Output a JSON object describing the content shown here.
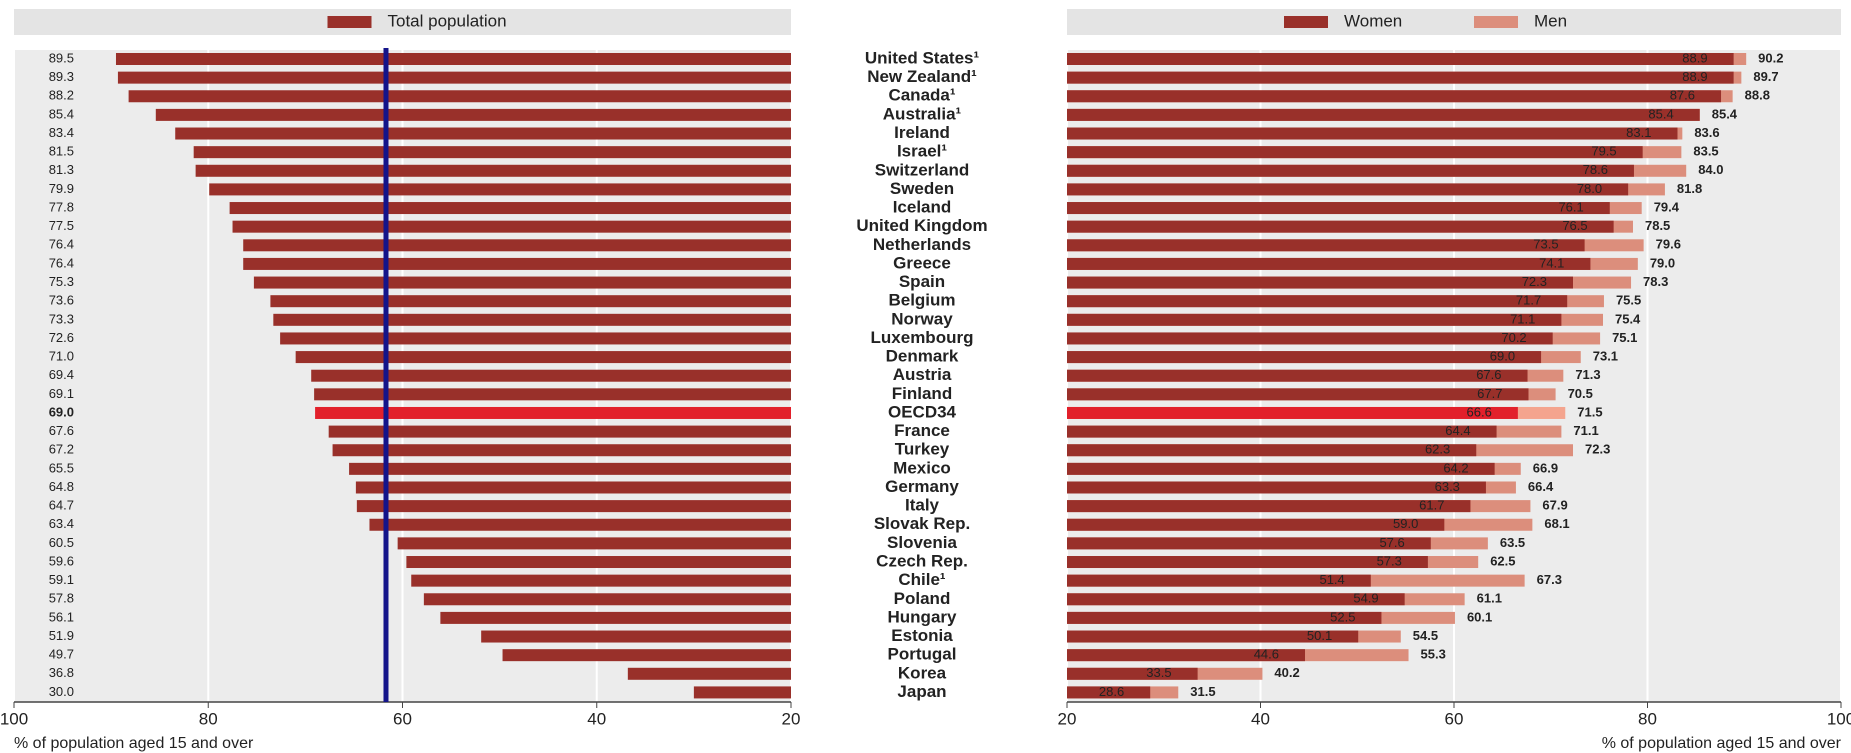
{
  "chart_data": [
    {
      "type": "bar",
      "orientation": "horizontal",
      "legend": "top",
      "grid": true,
      "xlabel": "% of population aged 15 and over",
      "xlim": [
        100,
        20
      ],
      "xticks": [
        100,
        80,
        60,
        40,
        20
      ],
      "highlight_index": 19,
      "reference_line": {
        "value": 61.7,
        "color": "#14148a"
      },
      "categories": [
        "United States¹",
        "New Zealand¹",
        "Canada¹",
        "Australia¹",
        "Ireland",
        "Israel¹",
        "Switzerland",
        "Sweden",
        "Iceland",
        "United Kingdom",
        "Netherlands",
        "Greece",
        "Spain",
        "Belgium",
        "Norway",
        "Luxembourg",
        "Denmark",
        "Austria",
        "Finland",
        "OECD34",
        "France",
        "Turkey",
        "Mexico",
        "Germany",
        "Italy",
        "Slovak Rep.",
        "Slovenia",
        "Czech Rep.",
        "Chile¹",
        "Poland",
        "Hungary",
        "Estonia",
        "Portugal",
        "Korea",
        "Japan"
      ],
      "series": [
        {
          "name": "Total population",
          "color": "#99302a",
          "highlight_color": "#e2202b",
          "values": [
            89.5,
            89.3,
            88.2,
            85.4,
            83.4,
            81.5,
            81.3,
            79.9,
            77.8,
            77.5,
            76.4,
            76.4,
            75.3,
            73.6,
            73.3,
            72.6,
            71.0,
            69.4,
            69.1,
            69.0,
            67.6,
            67.2,
            65.5,
            64.8,
            64.7,
            63.4,
            60.5,
            59.6,
            59.1,
            57.8,
            56.1,
            51.9,
            49.7,
            36.8,
            30.0
          ],
          "value_labels": [
            "89.5",
            "89.3",
            "88.2",
            "85.4",
            "83.4",
            "81.5",
            "81.3",
            "79.9",
            "77.8",
            "77.5",
            "76.4",
            "76.4",
            "75.3",
            "73.6",
            "73.3",
            "72.6",
            "71.0",
            "69.4",
            "69.1",
            "69.0",
            "67.6",
            "67.2",
            "65.5",
            "64.8",
            "64.7",
            "63.4",
            "60.5",
            "59.6",
            "59.1",
            "57.8",
            "56.1",
            "51.9",
            "49.7",
            "36.8",
            "30.0"
          ]
        }
      ]
    },
    {
      "type": "bar",
      "orientation": "horizontal",
      "legend": "top",
      "grid": true,
      "xlabel": "% of population aged 15 and over",
      "xlim": [
        20,
        100
      ],
      "xticks": [
        20,
        40,
        60,
        80,
        100
      ],
      "highlight_index": 19,
      "series": [
        {
          "name": "Women",
          "color": "#99302a",
          "highlight_color": "#e2202b",
          "values": [
            88.9,
            88.9,
            87.6,
            85.4,
            83.1,
            79.5,
            78.6,
            78.0,
            76.1,
            76.5,
            73.5,
            74.1,
            72.3,
            71.7,
            71.1,
            70.2,
            69.0,
            67.6,
            67.7,
            66.6,
            64.4,
            62.3,
            64.2,
            63.3,
            61.7,
            59.0,
            57.6,
            57.3,
            51.4,
            54.9,
            52.5,
            50.1,
            44.6,
            33.5,
            28.6
          ],
          "value_labels": [
            "88.9",
            "88.9",
            "87.6",
            "85.4",
            "83.1",
            "79.5",
            "78.6",
            "78.0",
            "76.1",
            "76.5",
            "73.5",
            "74.1",
            "72.3",
            "71.7",
            "71.1",
            "70.2",
            "69.0",
            "67.6",
            "67.7",
            "66.6",
            "64.4",
            "62.3",
            "64.2",
            "63.3",
            "61.7",
            "59.0",
            "57.6",
            "57.3",
            "51.4",
            "54.9",
            "52.5",
            "50.1",
            "44.6",
            "33.5",
            "28.6"
          ]
        },
        {
          "name": "Men",
          "color": "#dc8e7c",
          "highlight_color": "#f4a48e",
          "values": [
            90.2,
            89.7,
            88.8,
            85.4,
            83.6,
            83.5,
            84.0,
            81.8,
            79.4,
            78.5,
            79.6,
            79.0,
            78.3,
            75.5,
            75.4,
            75.1,
            73.1,
            71.3,
            70.5,
            71.5,
            71.1,
            72.3,
            66.9,
            66.4,
            67.9,
            68.1,
            63.5,
            62.5,
            67.3,
            61.1,
            60.1,
            54.5,
            55.3,
            40.2,
            31.5
          ],
          "value_labels": [
            "90.2",
            "89.7",
            "88.8",
            "85.4",
            "83.6",
            "83.5",
            "84.0",
            "81.8",
            "79.4",
            "78.5",
            "79.6",
            "79.0",
            "78.3",
            "75.5",
            "75.4",
            "75.1",
            "73.1",
            "71.3",
            "70.5",
            "71.5",
            "71.1",
            "72.3",
            "66.9",
            "66.4",
            "67.9",
            "68.1",
            "63.5",
            "62.5",
            "67.3",
            "61.1",
            "60.1",
            "54.5",
            "55.3",
            "40.2",
            "31.5"
          ]
        }
      ]
    }
  ]
}
